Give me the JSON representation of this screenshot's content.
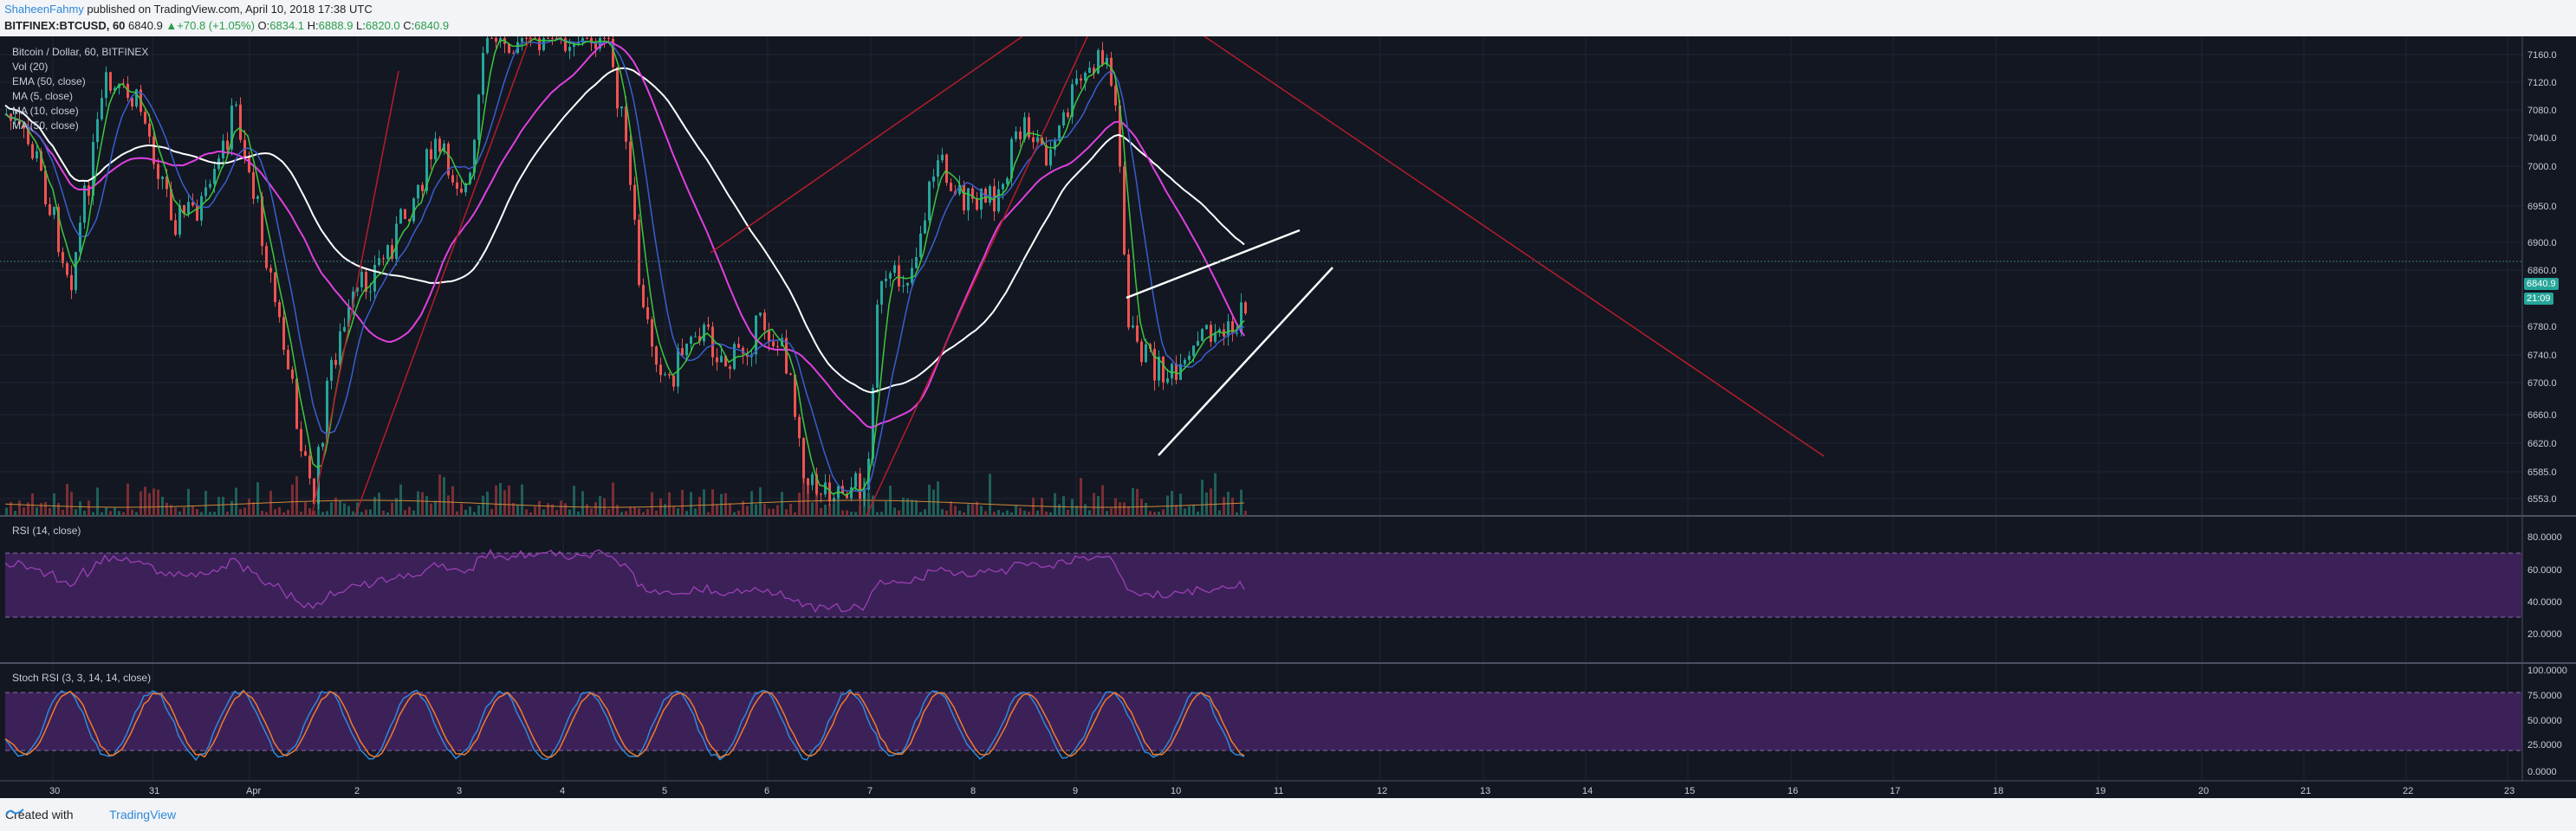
{
  "header": {
    "author": "ShaheenFahmy",
    "published": "published on TradingView.com, April 10, 2018 17:38 UTC",
    "symbol": "BITFINEX:BTCUSD, 60",
    "last": "6840.9",
    "change": "▲+70.8 (+1.05%)",
    "ohlc": {
      "o_label": "O:",
      "o": "6834.1",
      "h_label": "H:",
      "h": "6888.9",
      "l_label": "L:",
      "l": "6820.0",
      "c_label": "C:",
      "c": "6840.9"
    }
  },
  "main_pane": {
    "legend": [
      "Bitcoin / Dollar, 60, BITFINEX",
      "Vol (20)",
      "EMA (50, close)",
      "MA (5, close)",
      "MA (10, close)",
      "MA (50, close)"
    ],
    "price_ticks": [
      "7160.0",
      "7120.0",
      "7080.0",
      "7040.0",
      "7000.0",
      "6950.0",
      "6900.0",
      "6860.0",
      "6780.0",
      "6740.0",
      "6700.0",
      "6660.0",
      "6620.0",
      "6585.0",
      "6553.0"
    ],
    "last_price_badge": "6840.9",
    "countdown_badge": "21:09"
  },
  "rsi_pane": {
    "legend": "RSI (14, close)",
    "ticks": [
      "80.0000",
      "60.0000",
      "40.0000",
      "20.0000"
    ]
  },
  "stoch_pane": {
    "legend": "Stoch RSI (3, 3, 14, 14, close)",
    "ticks": [
      "100.0000",
      "75.0000",
      "50.0000",
      "25.0000",
      "0.0000"
    ]
  },
  "time_axis": {
    "labels": [
      "30",
      "31",
      "Apr",
      "2",
      "3",
      "4",
      "5",
      "6",
      "7",
      "8",
      "9",
      "10",
      "11",
      "12",
      "13",
      "14",
      "15",
      "16",
      "17",
      "18",
      "19",
      "20",
      "21",
      "22",
      "23"
    ]
  },
  "colors": {
    "background": "#131722",
    "up_candle": "#26a69a",
    "down_candle": "#ef5350",
    "ema": "#ffffff",
    "ma5": "#3cc83c",
    "ma10": "#3a5ecf",
    "ma50": "#e040e0",
    "trendline": "#b71c2a",
    "rsi": "#9c3fb5",
    "stoch_k": "#2f88d8",
    "stoch_d": "#f07a2c"
  },
  "footer": {
    "created_with": "Created with",
    "brand": "TradingView"
  }
}
